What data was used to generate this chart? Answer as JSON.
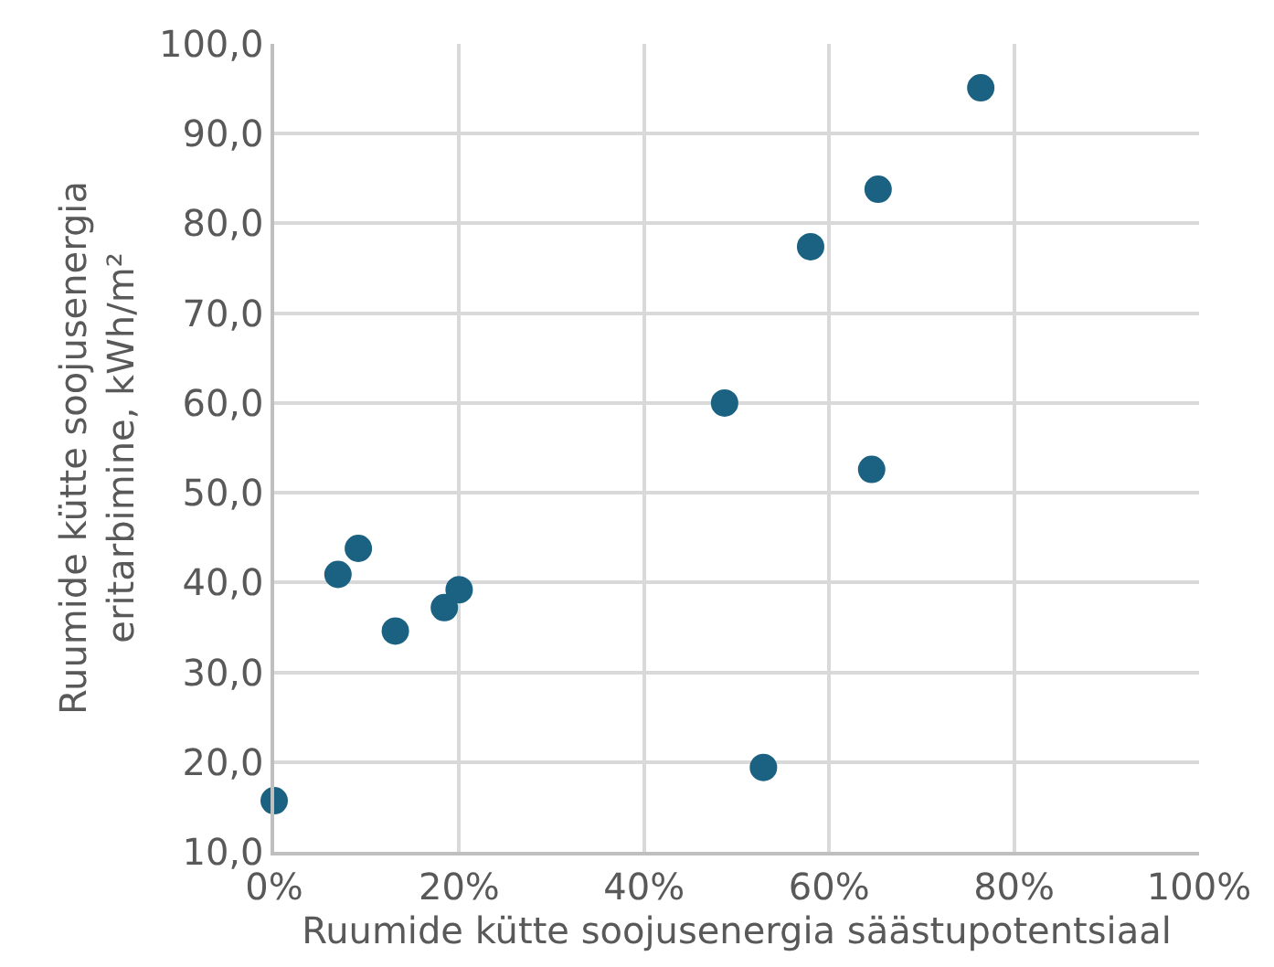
{
  "chart_data": {
    "type": "scatter",
    "xlabel": "Ruumide kütte soojusenergia säästupotentsiaal",
    "ylabel": "Ruumide kütte soojusenergia eritarbimine, kWh/m²",
    "x": [
      0.0,
      0.069,
      0.091,
      0.131,
      0.184,
      0.2,
      0.487,
      0.529,
      0.58,
      0.646,
      0.653,
      0.764
    ],
    "values": [
      15.7,
      40.9,
      43.8,
      34.6,
      37.2,
      39.2,
      60.0,
      19.4,
      77.4,
      52.6,
      83.8,
      95.1
    ],
    "color": "#1b6182",
    "marker": "circle",
    "xlim": [
      0,
      1
    ],
    "xticks": [
      {
        "value": 0,
        "label": "0%"
      },
      {
        "value": 0.2,
        "label": "20%"
      },
      {
        "value": 0.4,
        "label": "40%"
      },
      {
        "value": 0.6,
        "label": "60%"
      },
      {
        "value": 0.8,
        "label": "80%"
      },
      {
        "value": 1,
        "label": "100%"
      }
    ],
    "ylim": [
      10,
      100
    ],
    "yticks": [
      {
        "value": 10,
        "label": "10,0"
      },
      {
        "value": 20,
        "label": "20,0"
      },
      {
        "value": 30,
        "label": "30,0"
      },
      {
        "value": 40,
        "label": "40,0"
      },
      {
        "value": 50,
        "label": "50,0"
      },
      {
        "value": 60,
        "label": "60,0"
      },
      {
        "value": 70,
        "label": "70,0"
      },
      {
        "value": 80,
        "label": "80,0"
      },
      {
        "value": 90,
        "label": "90,0"
      },
      {
        "value": 100,
        "label": "100,0"
      }
    ],
    "grid": true
  }
}
